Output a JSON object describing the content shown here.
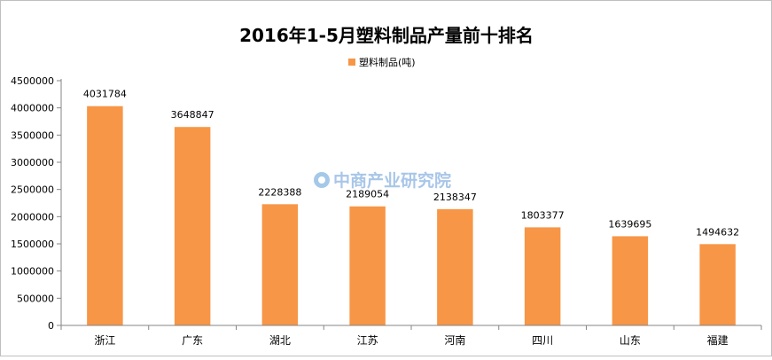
{
  "chart_data": {
    "type": "bar",
    "title": "2016年1-5月塑料制品产量前十排名",
    "categories": [
      "浙江",
      "广东",
      "湖北",
      "江苏",
      "河南",
      "四川",
      "山东",
      "福建"
    ],
    "series": [
      {
        "name": "塑料制品(吨)",
        "values": [
          4031784,
          3648847,
          2228388,
          2189054,
          2138347,
          1803377,
          1639695,
          1494632
        ]
      }
    ],
    "data_labels": [
      "4031784",
      "3648847",
      "2228388",
      "2189054",
      "2138347",
      "1803377",
      "1639695",
      "1494632"
    ],
    "ylim": [
      0,
      4500000
    ],
    "yticks": [
      0,
      500000,
      1000000,
      1500000,
      2000000,
      2500000,
      3000000,
      3500000,
      4000000,
      4500000
    ],
    "ytick_labels": [
      "0",
      "500000",
      "1000000",
      "1500000",
      "2000000",
      "2500000",
      "3000000",
      "3500000",
      "4000000",
      "4500000"
    ],
    "xlabel": "",
    "ylabel": "",
    "grid": false,
    "legend_position": "top-center",
    "bar_color": "#F79646"
  },
  "watermark": {
    "text": "中商产业研究院",
    "color": "#A9C6E8"
  }
}
